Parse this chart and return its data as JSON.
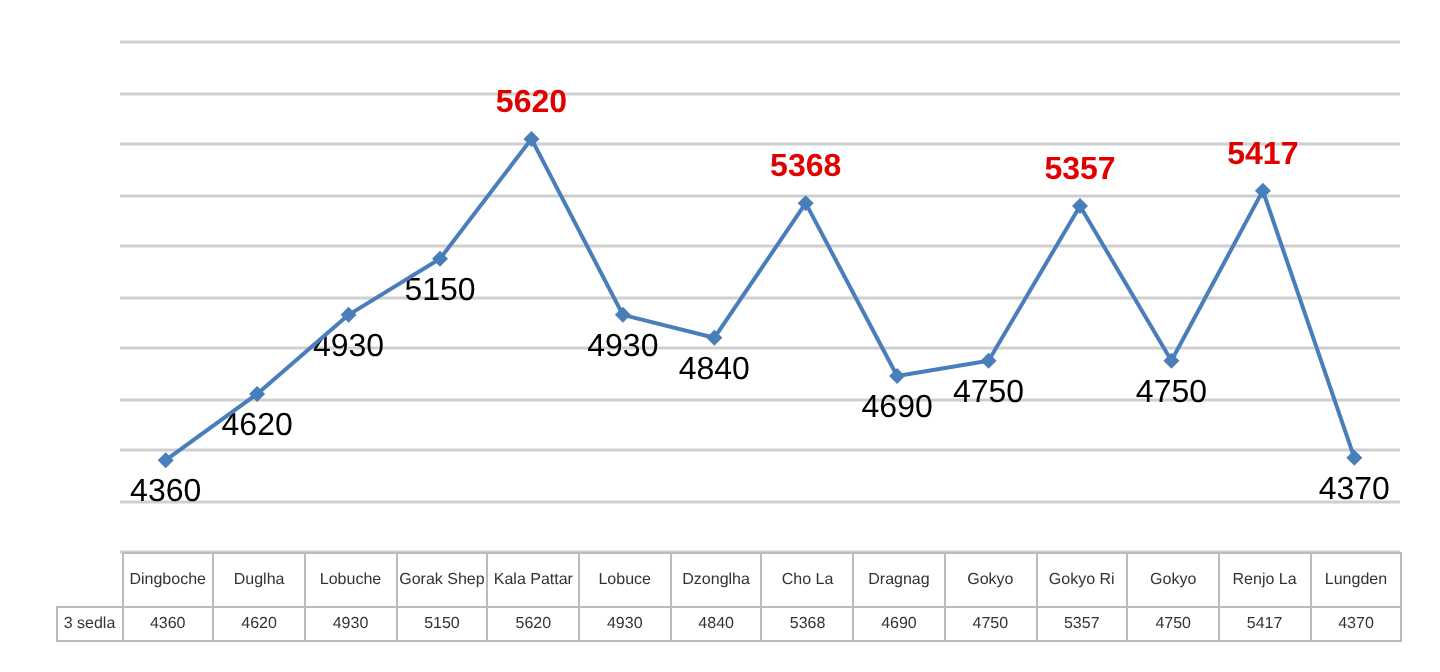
{
  "chart_data": {
    "type": "line",
    "categories": [
      "Dingboche",
      "Duglha",
      "Lobuche",
      "Gorak Shep",
      "Kala Pattar",
      "Lobuce",
      "Dzonglha",
      "Cho La",
      "Dragnag",
      "Gokyo",
      "Gokyo Ri",
      "Gokyo",
      "Renjo La",
      "Lungden"
    ],
    "series": [
      {
        "name": "3 sedla",
        "color": "#4a7ebb",
        "values": [
          4360,
          4620,
          4930,
          5150,
          5620,
          4930,
          4840,
          5368,
          4690,
          4750,
          5357,
          4750,
          5417,
          4370
        ]
      }
    ],
    "annotations": [
      {
        "text": "4360",
        "x": "Dingboche",
        "y": 4360
      },
      {
        "text": "4620",
        "x": "Duglha",
        "y": 4620
      },
      {
        "text": "4930",
        "x": "Lobuche",
        "y": 4930
      },
      {
        "text": "5150",
        "x": "Gorak Shep",
        "y": 5150
      },
      {
        "text": "5620",
        "x": "Kala Pattar",
        "y": 5620
      },
      {
        "text": "4930",
        "x": "Lobuce",
        "y": 4930
      },
      {
        "text": "4840",
        "x": "Dzonglha",
        "y": 4840
      },
      {
        "text": "5368",
        "x": "Cho La",
        "y": 5368
      },
      {
        "text": "4690",
        "x": "Dragnag",
        "y": 4690
      },
      {
        "text": "4750",
        "x": "Gokyo",
        "y": 4750
      },
      {
        "text": "5357",
        "x": "Gokyo Ri",
        "y": 5357
      },
      "4750",
      {
        "text": "5417",
        "x": "Renjo La",
        "y": 5417
      },
      {
        "text": "4370",
        "x": "Lungden",
        "y": 4370
      }
    ],
    "ylim": [
      4000,
      6000
    ],
    "yticks": [
      4000,
      4200,
      4400,
      4600,
      4800,
      5000,
      5200,
      5400,
      5600,
      5800,
      6000
    ],
    "grid": "y",
    "tick_labels": false,
    "marker": "diamond",
    "line_style": "solid",
    "data_labels": true
  }
}
